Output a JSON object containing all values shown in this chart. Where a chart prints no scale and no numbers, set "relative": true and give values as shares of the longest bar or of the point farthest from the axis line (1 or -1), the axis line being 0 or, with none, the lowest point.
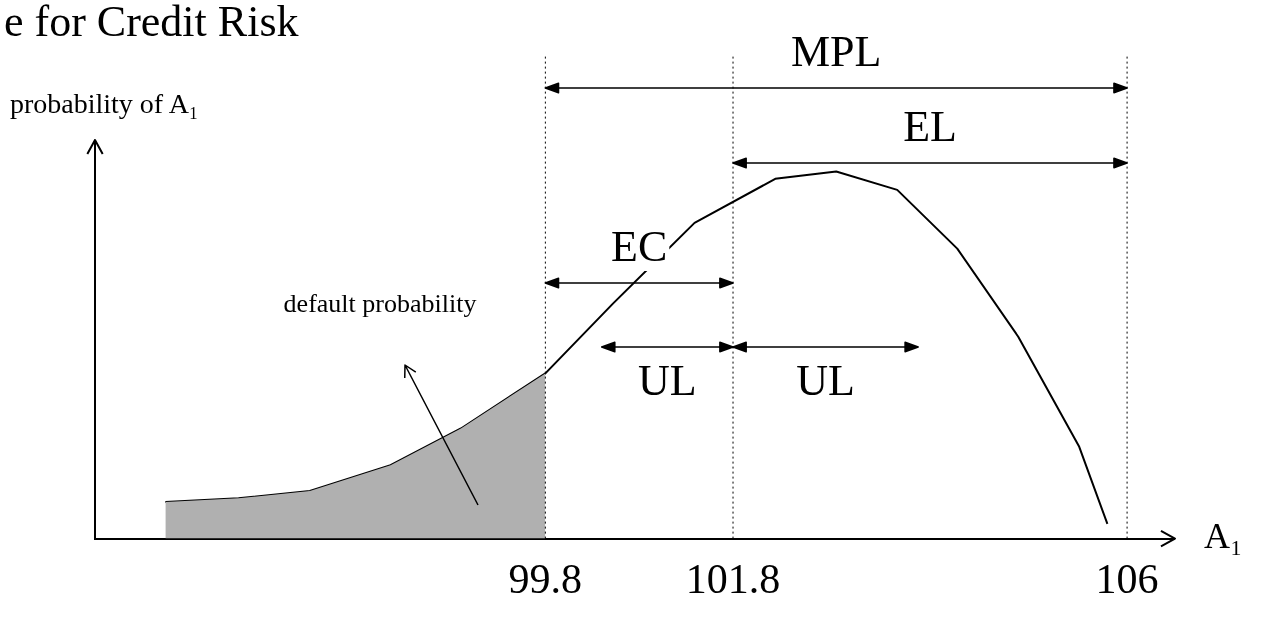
{
  "chart_data": {
    "type": "line",
    "title": "e for Credit Risk",
    "xlabel": "A₁",
    "ylabel": "probability of A₁",
    "relative": true,
    "xlim": [
      95,
      106.5
    ],
    "xticks": [
      99.8,
      101.8,
      106
    ],
    "grid": false,
    "legend": false,
    "marker": "none",
    "series": [
      {
        "type": "area",
        "color": "#b0b0b0",
        "x": [
          95.75,
          96.53,
          97.29,
          98.15,
          98.9,
          99.8
        ],
        "values": [
          0.1,
          0.11,
          0.13,
          0.2,
          0.3,
          0.45
        ]
      },
      {
        "color": "#000000",
        "x": [
          95.75,
          96.53,
          97.29,
          98.15,
          98.9,
          99.8,
          100.52,
          101.39,
          102.25,
          102.9,
          103.55,
          104.19,
          104.84,
          105.49,
          105.79
        ],
        "values": [
          0.1,
          0.11,
          0.13,
          0.2,
          0.3,
          0.45,
          0.64,
          0.86,
          0.98,
          1,
          0.95,
          0.79,
          0.55,
          0.25,
          0.04
        ]
      }
    ],
    "ref_lines": [
      {
        "axis": "x",
        "value": 99.8,
        "line_style": "dotted"
      },
      {
        "axis": "x",
        "value": 101.8,
        "line_style": "dotted"
      },
      {
        "axis": "x",
        "value": 106,
        "line_style": "dotted"
      }
    ],
    "annotations": [
      "MPL",
      "EL",
      "EC",
      "UL",
      "UL",
      "default probability"
    ]
  }
}
